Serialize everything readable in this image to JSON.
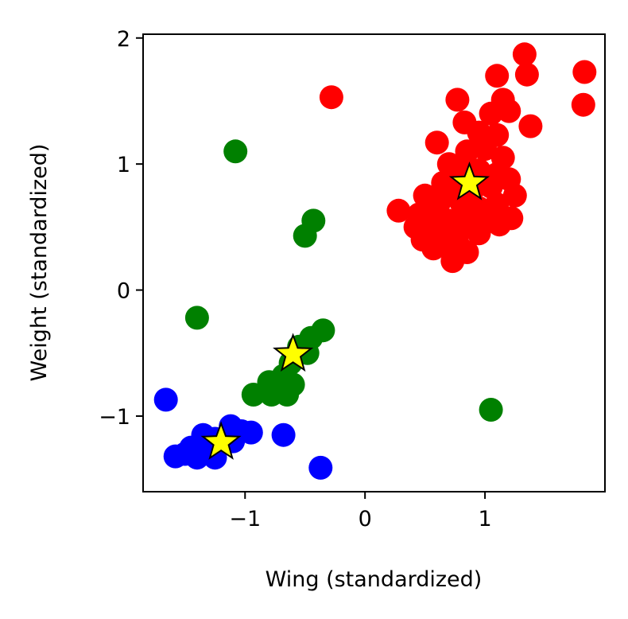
{
  "chart_data": {
    "type": "scatter",
    "title": "",
    "xlabel": "Wing (standardized)",
    "ylabel": "Weight (standardized)",
    "xlim": [
      -1.85,
      2.0
    ],
    "ylim": [
      -1.6,
      2.03
    ],
    "xticks": [
      -1,
      0,
      1
    ],
    "yticks": [
      -1,
      0,
      1,
      2
    ],
    "xtick_labels": [
      "−1",
      "0",
      "1"
    ],
    "ytick_labels": [
      "−1",
      "0",
      "1",
      "2"
    ],
    "grid": false,
    "legend": "none",
    "series": [
      {
        "color": "#ff0000",
        "marker": "circle",
        "points": [
          [
            1.33,
            1.87
          ],
          [
            1.35,
            1.71
          ],
          [
            1.83,
            1.73
          ],
          [
            1.82,
            1.47
          ],
          [
            -0.28,
            1.53
          ],
          [
            1.1,
            1.7
          ],
          [
            0.77,
            1.51
          ],
          [
            1.15,
            1.51
          ],
          [
            1.05,
            1.4
          ],
          [
            1.2,
            1.42
          ],
          [
            1.38,
            1.3
          ],
          [
            0.83,
            1.33
          ],
          [
            0.95,
            1.25
          ],
          [
            1.1,
            1.23
          ],
          [
            0.6,
            1.17
          ],
          [
            0.85,
            1.1
          ],
          [
            1.0,
            1.12
          ],
          [
            1.15,
            1.05
          ],
          [
            0.7,
            1.0
          ],
          [
            0.8,
            0.95
          ],
          [
            0.95,
            0.95
          ],
          [
            1.1,
            0.92
          ],
          [
            1.2,
            0.88
          ],
          [
            0.65,
            0.85
          ],
          [
            0.75,
            0.8
          ],
          [
            0.9,
            0.8
          ],
          [
            1.05,
            0.82
          ],
          [
            1.25,
            0.75
          ],
          [
            0.5,
            0.75
          ],
          [
            0.62,
            0.7
          ],
          [
            0.8,
            0.7
          ],
          [
            0.95,
            0.65
          ],
          [
            1.1,
            0.68
          ],
          [
            0.28,
            0.63
          ],
          [
            0.45,
            0.6
          ],
          [
            0.58,
            0.6
          ],
          [
            0.7,
            0.55
          ],
          [
            0.85,
            0.55
          ],
          [
            1.0,
            0.55
          ],
          [
            1.22,
            0.57
          ],
          [
            1.12,
            0.52
          ],
          [
            0.42,
            0.5
          ],
          [
            0.55,
            0.45
          ],
          [
            0.68,
            0.45
          ],
          [
            0.8,
            0.48
          ],
          [
            0.95,
            0.45
          ],
          [
            0.48,
            0.4
          ],
          [
            0.62,
            0.38
          ],
          [
            0.78,
            0.35
          ],
          [
            0.57,
            0.33
          ],
          [
            0.85,
            0.3
          ],
          [
            0.73,
            0.23
          ]
        ]
      },
      {
        "color": "#008000",
        "marker": "circle",
        "points": [
          [
            -1.08,
            1.1
          ],
          [
            -0.43,
            0.55
          ],
          [
            -0.5,
            0.43
          ],
          [
            -1.4,
            -0.22
          ],
          [
            -0.35,
            -0.32
          ],
          [
            -0.45,
            -0.38
          ],
          [
            -0.55,
            -0.45
          ],
          [
            -0.48,
            -0.5
          ],
          [
            -0.62,
            -0.58
          ],
          [
            -0.68,
            -0.68
          ],
          [
            -0.8,
            -0.73
          ],
          [
            -0.6,
            -0.75
          ],
          [
            -0.93,
            -0.83
          ],
          [
            -0.78,
            -0.83
          ],
          [
            -0.65,
            -0.83
          ],
          [
            1.05,
            -0.95
          ]
        ]
      },
      {
        "color": "#0000ff",
        "marker": "circle",
        "points": [
          [
            -1.66,
            -0.87
          ],
          [
            -0.68,
            -1.15
          ],
          [
            -1.35,
            -1.15
          ],
          [
            -1.12,
            -1.08
          ],
          [
            -1.03,
            -1.12
          ],
          [
            -0.95,
            -1.13
          ],
          [
            -1.25,
            -1.18
          ],
          [
            -1.1,
            -1.2
          ],
          [
            -1.45,
            -1.25
          ],
          [
            -1.3,
            -1.28
          ],
          [
            -1.5,
            -1.3
          ],
          [
            -1.58,
            -1.32
          ],
          [
            -1.4,
            -1.33
          ],
          [
            -1.25,
            -1.33
          ],
          [
            -0.37,
            -1.41
          ]
        ]
      },
      {
        "color": "#ffff00",
        "marker": "star",
        "points": [
          [
            0.87,
            0.85
          ],
          [
            -0.6,
            -0.51
          ],
          [
            -1.2,
            -1.21
          ]
        ]
      }
    ]
  }
}
